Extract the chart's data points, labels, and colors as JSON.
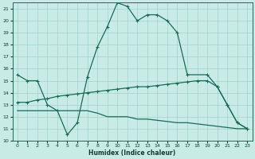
{
  "xlabel": "Humidex (Indice chaleur)",
  "background_color": "#c8ebe6",
  "grid_color": "#a0d4cc",
  "line_color": "#1a6b5a",
  "x_ticks": [
    0,
    1,
    2,
    3,
    4,
    5,
    6,
    7,
    8,
    9,
    10,
    11,
    12,
    13,
    14,
    15,
    16,
    17,
    18,
    19,
    20,
    21,
    22,
    23
  ],
  "y_ticks": [
    10,
    11,
    12,
    13,
    14,
    15,
    16,
    17,
    18,
    19,
    20,
    21
  ],
  "ylim": [
    10,
    21.5
  ],
  "xlim": [
    -0.5,
    23.5
  ],
  "line1_x": [
    0,
    1,
    2,
    3,
    4,
    5,
    6,
    7,
    8,
    9,
    10,
    11,
    12,
    13,
    14,
    15,
    16,
    17,
    19,
    20,
    21,
    22,
    23
  ],
  "line1_y": [
    15.5,
    15.0,
    15.0,
    13.0,
    12.5,
    10.5,
    11.5,
    15.3,
    17.8,
    19.5,
    21.5,
    21.2,
    20.0,
    20.5,
    20.5,
    20.0,
    19.0,
    15.5,
    15.5,
    14.5,
    13.0,
    11.5,
    11.0
  ],
  "line2_x": [
    0,
    1,
    2,
    3,
    4,
    5,
    6,
    7,
    8,
    9,
    10,
    11,
    12,
    13,
    14,
    15,
    16,
    17,
    18,
    19,
    20,
    21,
    22,
    23
  ],
  "line2_y": [
    13.2,
    13.2,
    13.4,
    13.5,
    13.7,
    13.8,
    13.9,
    14.0,
    14.1,
    14.2,
    14.3,
    14.4,
    14.5,
    14.5,
    14.6,
    14.7,
    14.8,
    14.9,
    15.0,
    15.0,
    14.5,
    13.0,
    11.5,
    11.0
  ],
  "line3_x": [
    0,
    1,
    2,
    3,
    4,
    5,
    6,
    7,
    8,
    9,
    10,
    11,
    12,
    13,
    14,
    15,
    16,
    17,
    18,
    19,
    20,
    21,
    22,
    23
  ],
  "line3_y": [
    12.5,
    12.5,
    12.5,
    12.5,
    12.5,
    12.5,
    12.5,
    12.5,
    12.3,
    12.0,
    12.0,
    12.0,
    11.8,
    11.8,
    11.7,
    11.6,
    11.5,
    11.5,
    11.4,
    11.3,
    11.2,
    11.1,
    11.0,
    11.0
  ]
}
